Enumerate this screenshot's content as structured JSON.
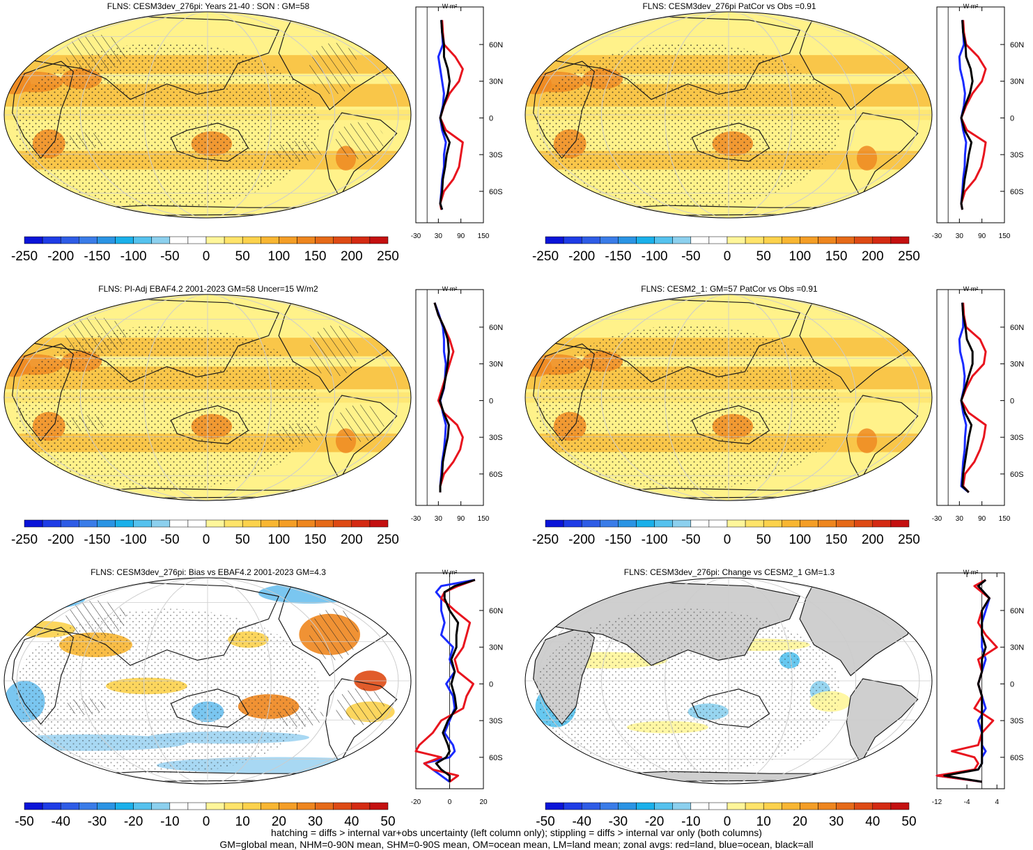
{
  "figure": {
    "footer_line1": "hatching = diffs > internal var+obs uncertainty (left column only); stippling = diffs > internal var only (both columns)",
    "footer_line2": "GM=global mean, NHM=0-90N mean, SHM=0-90S mean, OM=ocean mean, LM=land mean; zonal avgs: red=land, blue=ocean, black=all"
  },
  "colors": {
    "land": "#e8141e",
    "ocean": "#1a2bff",
    "all": "#000000",
    "map_bg": "#fff28a",
    "map_warm": "#f7b733",
    "map_hot": "#ee8a22",
    "neutral": "#ffffff",
    "grey": "#cfcfcf",
    "coast": "#1a1a1a"
  },
  "colorbars": {
    "full": {
      "labels": [
        "-250",
        "-200",
        "-150",
        "-100",
        "-50",
        "0",
        "50",
        "100",
        "150",
        "200",
        "250"
      ],
      "colors": [
        "#0a14d8",
        "#1e3ce6",
        "#2e5ce6",
        "#3a7ce8",
        "#2a94e4",
        "#1ab0ea",
        "#55c2ee",
        "#8cd0ee",
        "#ffffff",
        "#ffffff",
        "#fff69a",
        "#ffe46a",
        "#fcd24c",
        "#f8b632",
        "#f49e26",
        "#ee861e",
        "#e66a18",
        "#de4a14",
        "#d42a12",
        "#c41010"
      ]
    },
    "diff": {
      "labels": [
        "-50",
        "-40",
        "-30",
        "-20",
        "-10",
        "0",
        "10",
        "20",
        "30",
        "40",
        "50"
      ],
      "colors": [
        "#0a14d8",
        "#1e3ce6",
        "#2e5ce6",
        "#3a7ce8",
        "#2a94e4",
        "#1ab0ea",
        "#55c2ee",
        "#8cd0ee",
        "#ffffff",
        "#ffffff",
        "#fff69a",
        "#ffe46a",
        "#fcd24c",
        "#f8b632",
        "#f49e26",
        "#ee861e",
        "#e66a18",
        "#de4a14",
        "#d42a12",
        "#c41010"
      ]
    }
  },
  "chart_data": [
    {
      "type": "heatmap",
      "title": "FLNS: CESM3dev_276pi: Years 21-40 : SON : GM=58",
      "colorbar": "full",
      "map_style": "mean",
      "zonal_mean": {
        "title": "W m²",
        "xlim": [
          -30,
          150
        ],
        "xticks": [
          "-30",
          "30",
          "90",
          "150"
        ],
        "yticks": [
          "60N",
          "30N",
          "0",
          "30S",
          "60S"
        ],
        "lat": [
          80,
          70,
          60,
          50,
          40,
          30,
          20,
          10,
          0,
          -10,
          -20,
          -30,
          -40,
          -50,
          -60,
          -70,
          -75
        ],
        "land": [
          40,
          42,
          45,
          75,
          95,
          85,
          60,
          45,
          35,
          50,
          95,
          90,
          85,
          70,
          45,
          35,
          38
        ],
        "ocean": [
          38,
          40,
          42,
          30,
          35,
          40,
          45,
          42,
          35,
          40,
          50,
          45,
          45,
          40,
          38,
          35,
          40
        ],
        "all": [
          38,
          40,
          45,
          45,
          55,
          60,
          55,
          44,
          35,
          44,
          60,
          52,
          48,
          42,
          40,
          35,
          40
        ]
      }
    },
    {
      "type": "heatmap",
      "title": "FLNS: CESM3dev_276pi PatCor vs Obs =0.91",
      "colorbar": "full",
      "map_style": "mean",
      "zonal_mean": {
        "title": "W m²",
        "xlim": [
          -30,
          150
        ],
        "xticks": [
          "-30",
          "30",
          "90",
          "150"
        ],
        "yticks": [
          "60N",
          "30N",
          "0",
          "30S",
          "60S"
        ],
        "lat": [
          80,
          70,
          60,
          50,
          40,
          30,
          20,
          10,
          0,
          -10,
          -20,
          -30,
          -40,
          -50,
          -60,
          -70,
          -75
        ],
        "land": [
          40,
          42,
          48,
          80,
          100,
          90,
          65,
          48,
          35,
          50,
          100,
          95,
          88,
          72,
          45,
          35,
          38
        ],
        "ocean": [
          38,
          40,
          42,
          30,
          32,
          40,
          45,
          42,
          35,
          40,
          48,
          45,
          44,
          40,
          38,
          35,
          38
        ],
        "all": [
          38,
          40,
          46,
          48,
          60,
          65,
          58,
          45,
          35,
          44,
          62,
          55,
          50,
          44,
          40,
          35,
          38
        ]
      }
    },
    {
      "type": "heatmap",
      "title": "FLNS: PI-Adj EBAF4.2 2001-2023 GM=58 Uncer=15 W/m2",
      "colorbar": "full",
      "map_style": "mean",
      "zonal_mean": {
        "title": "W m²",
        "xlim": [
          -30,
          150
        ],
        "xticks": [
          "-30",
          "30",
          "90",
          "150"
        ],
        "yticks": [
          "60N",
          "30N",
          "0",
          "30S",
          "60S"
        ],
        "lat": [
          80,
          70,
          60,
          50,
          40,
          30,
          20,
          10,
          0,
          -10,
          -20,
          -30,
          -40,
          -50,
          -60,
          -70,
          -75
        ],
        "land": [
          20,
          30,
          45,
          60,
          70,
          60,
          50,
          40,
          30,
          45,
          80,
          95,
          88,
          70,
          45,
          35,
          35
        ],
        "ocean": [
          20,
          32,
          42,
          45,
          45,
          50,
          48,
          45,
          35,
          42,
          50,
          48,
          45,
          40,
          38,
          35,
          35
        ],
        "all": [
          20,
          30,
          45,
          55,
          58,
          55,
          50,
          44,
          34,
          44,
          58,
          55,
          48,
          42,
          40,
          35,
          35
        ]
      }
    },
    {
      "type": "heatmap",
      "title": "FLNS: CESM2_1: GM=57 PatCor vs Obs =0.91",
      "colorbar": "full",
      "map_style": "mean",
      "zonal_mean": {
        "title": "W m²",
        "xlim": [
          -30,
          150
        ],
        "xticks": [
          "-30",
          "30",
          "90",
          "150"
        ],
        "yticks": [
          "60N",
          "30N",
          "0",
          "30S",
          "60S"
        ],
        "lat": [
          80,
          70,
          60,
          50,
          40,
          30,
          20,
          10,
          0,
          -10,
          -20,
          -30,
          -40,
          -50,
          -60,
          -70,
          -75
        ],
        "land": [
          40,
          42,
          48,
          85,
          100,
          95,
          65,
          48,
          35,
          55,
          100,
          95,
          85,
          70,
          45,
          40,
          55
        ],
        "ocean": [
          38,
          40,
          40,
          30,
          32,
          40,
          44,
          42,
          35,
          40,
          48,
          45,
          44,
          40,
          38,
          35,
          55
        ],
        "all": [
          38,
          40,
          46,
          50,
          65,
          65,
          55,
          45,
          35,
          45,
          62,
          55,
          50,
          45,
          40,
          38,
          55
        ]
      }
    },
    {
      "type": "heatmap",
      "title": "FLNS: CESM3dev_276pi: Bias vs EBAF4.2 2001-2023  GM=4.3",
      "colorbar": "diff",
      "map_style": "bias",
      "zonal_mean": {
        "title": "W m²",
        "xlim": [
          -20,
          20
        ],
        "xticks": [
          "-20",
          "0",
          "20"
        ],
        "yticks": [
          "60N",
          "30N",
          "0",
          "30S",
          "60S"
        ],
        "lat": [
          85,
          80,
          75,
          70,
          60,
          50,
          40,
          30,
          20,
          10,
          0,
          -10,
          -20,
          -30,
          -40,
          -50,
          -55,
          -60,
          -65,
          -70,
          -75,
          -80
        ],
        "land": [
          15,
          5,
          -3,
          -5,
          3,
          12,
          10,
          8,
          3,
          5,
          14,
          10,
          8,
          -5,
          -10,
          -18,
          -20,
          -5,
          -15,
          -10,
          5,
          0
        ],
        "ocean": [
          15,
          -5,
          -8,
          -5,
          -5,
          -3,
          -5,
          2,
          0,
          3,
          -2,
          2,
          3,
          0,
          -3,
          2,
          3,
          0,
          -15,
          -10,
          -5,
          0
        ],
        "all": [
          15,
          3,
          -3,
          -3,
          0,
          5,
          4,
          4,
          1,
          3,
          1,
          3,
          4,
          -1,
          -4,
          -1,
          0,
          -2,
          -8,
          -5,
          0,
          0
        ]
      }
    },
    {
      "type": "heatmap",
      "title": "FLNS: CESM3dev_276pi: Change vs CESM2_1 GM=1.3",
      "colorbar": "diff",
      "map_style": "change",
      "zonal_mean": {
        "title": "W m²",
        "xlim": [
          -12,
          6
        ],
        "xticks": [
          "-12",
          "-4",
          "4"
        ],
        "yticks": [
          "60N",
          "30N",
          "0",
          "30S",
          "60S"
        ],
        "lat": [
          85,
          80,
          70,
          60,
          50,
          40,
          30,
          20,
          10,
          0,
          -10,
          -20,
          -30,
          -40,
          -50,
          -55,
          -60,
          -65,
          -70,
          -75,
          -80
        ],
        "land": [
          1,
          -2,
          2,
          0,
          -1,
          1,
          4,
          -1,
          0,
          -1,
          0,
          -2,
          3,
          0,
          -1,
          -8,
          -2,
          -1,
          -2,
          -12,
          0
        ],
        "ocean": [
          1,
          -1,
          2,
          1,
          0,
          0,
          0,
          1,
          0,
          -1,
          0,
          1,
          -1,
          0,
          0,
          1,
          0,
          0,
          -1,
          -12,
          0
        ],
        "all": [
          1,
          -1,
          2,
          0,
          0,
          0,
          1,
          0,
          0,
          -1,
          0,
          0,
          0,
          0,
          0,
          0,
          0,
          0,
          -1,
          -10,
          0
        ]
      }
    }
  ]
}
